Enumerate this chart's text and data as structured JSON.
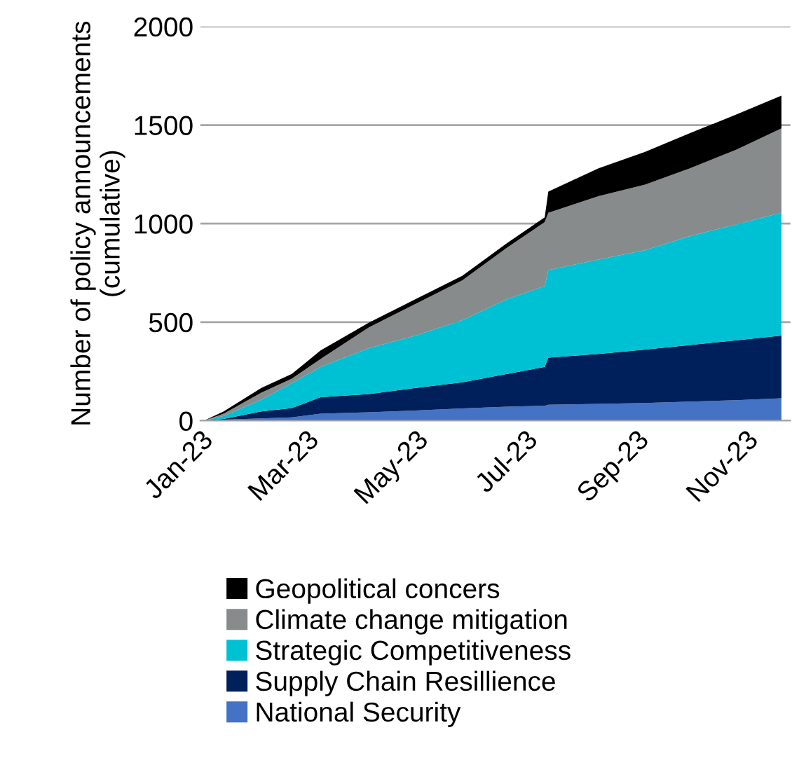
{
  "chart_data": {
    "type": "area",
    "stacked": true,
    "ylabel": "Number of policy announcements\n(cumulative)",
    "x": [
      "2023-01-03",
      "2023-01-14",
      "2023-02-04",
      "2023-02-21",
      "2023-03-09",
      "2023-04-05",
      "2023-05-01",
      "2023-05-27",
      "2023-06-21",
      "2023-07-12",
      "2023-07-14",
      "2023-08-11",
      "2023-09-06",
      "2023-10-01",
      "2023-10-27",
      "2023-11-21"
    ],
    "series": [
      {
        "name": "National Security",
        "color": "#4472c4",
        "values": [
          0,
          5,
          12,
          17,
          36,
          43,
          52,
          62,
          71,
          76,
          81,
          85,
          90,
          97,
          104,
          114
        ]
      },
      {
        "name": "Supply Chain Resillience",
        "color": "#00205b",
        "values": [
          0,
          4,
          35,
          47,
          83,
          92,
          114,
          133,
          166,
          197,
          239,
          254,
          271,
          287,
          304,
          318
        ]
      },
      {
        "name": "Strategic Competitiveness",
        "color": "#00c0d4",
        "values": [
          0,
          15,
          60,
          126,
          154,
          233,
          266,
          315,
          380,
          410,
          444,
          479,
          505,
          553,
          588,
          624
        ]
      },
      {
        "name": "Climate change mitigation",
        "color": "#878b8c",
        "values": [
          0,
          12,
          35,
          23,
          40,
          106,
          161,
          202,
          261,
          325,
          291,
          321,
          332,
          344,
          380,
          427
        ]
      },
      {
        "name": "Geopolitical concers",
        "color": "#000000",
        "values": [
          0,
          11,
          24,
          24,
          43,
          24,
          24,
          23,
          23,
          24,
          107,
          142,
          166,
          178,
          178,
          166
        ]
      }
    ],
    "xlim": [
      "2023-01-01",
      "2023-11-26"
    ],
    "xticks": [
      {
        "value": "2023-01-01",
        "label": "Jan-23"
      },
      {
        "value": "2023-03-01",
        "label": "Mar-23"
      },
      {
        "value": "2023-05-01",
        "label": "May-23"
      },
      {
        "value": "2023-07-01",
        "label": "Jul-23"
      },
      {
        "value": "2023-09-01",
        "label": "Sep-23"
      },
      {
        "value": "2023-11-01",
        "label": "Nov-23"
      }
    ],
    "ylim": [
      0,
      2000
    ],
    "yticks": [
      0,
      500,
      1000,
      1500,
      2000
    ],
    "grid": "y",
    "legend": "bottom"
  }
}
